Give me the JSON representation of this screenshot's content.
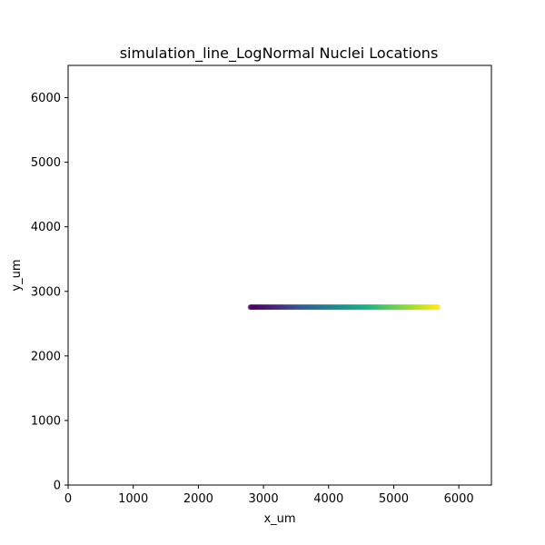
{
  "chart_data": {
    "type": "scatter",
    "title": "simulation_line_LogNormal Nuclei Locations",
    "xlabel": "x_um",
    "ylabel": "y_um",
    "xlim": [
      0,
      6500
    ],
    "ylim": [
      0,
      6500
    ],
    "x_ticks": [
      "0",
      "1000",
      "2000",
      "3000",
      "4000",
      "5000",
      "6000"
    ],
    "y_ticks": [
      "0",
      "1000",
      "2000",
      "3000",
      "4000",
      "5000",
      "6000"
    ],
    "grid": false,
    "colormap": "viridis",
    "series": [
      {
        "x_start": 2800,
        "x_end": 5680,
        "x_step": 20,
        "y": 2755,
        "color_order": "increasing with x"
      }
    ]
  }
}
